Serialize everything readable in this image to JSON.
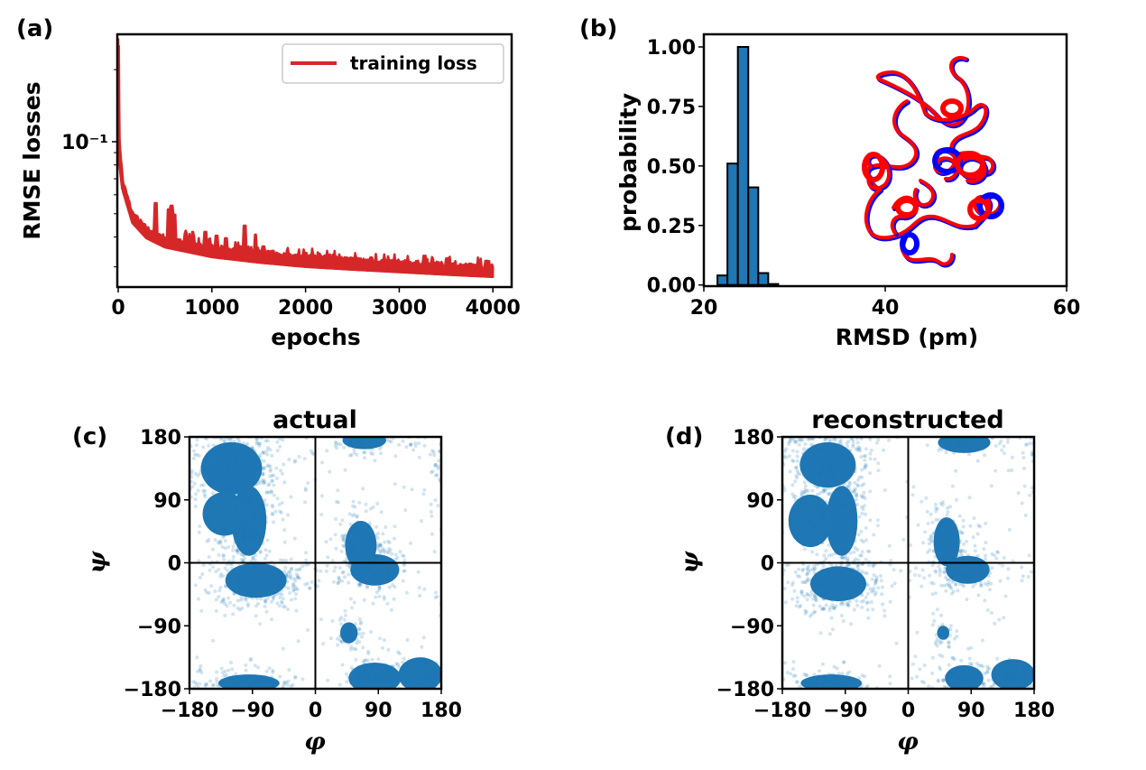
{
  "figure": {
    "panels": [
      "(a)",
      "(b)",
      "(c)",
      "(d)"
    ]
  },
  "chart_data": [
    {
      "id": "a",
      "type": "line",
      "panel_label": "(a)",
      "title": "",
      "xlabel": "epochs",
      "ylabel": "RMSE losses",
      "yscale": "log",
      "xlim": [
        0,
        4200
      ],
      "ylim": [
        0.0247,
        0.281
      ],
      "xticks": [
        0,
        1000,
        2000,
        3000,
        4000
      ],
      "xtick_labels": [
        "0",
        "1000",
        "2000",
        "3000",
        "4000"
      ],
      "yticks_major": [
        0.1
      ],
      "ytick_labels": [
        "10⁻¹"
      ],
      "yticks_minor": [
        0.03,
        0.04,
        0.05,
        0.06,
        0.07,
        0.08,
        0.09,
        0.2
      ],
      "legend": {
        "entries": [
          "training loss"
        ],
        "placement": "top-right"
      },
      "series": [
        {
          "name": "training loss",
          "color": "#d62728",
          "baseline": {
            "x": [
              0,
              8,
              50,
              150,
              300,
              500,
              1000,
              1500,
              2000,
              2500,
              3000,
              3500,
              4000
            ],
            "y": [
              0.253,
              0.1,
              0.0631,
              0.0466,
              0.0402,
              0.0368,
              0.0335,
              0.0318,
              0.0305,
              0.0297,
              0.029,
              0.0283,
              0.0277
            ]
          },
          "spikes": [
            {
              "x": 400,
              "y": 0.0554
            },
            {
              "x": 540,
              "y": 0.0521
            },
            {
              "x": 570,
              "y": 0.054
            },
            {
              "x": 600,
              "y": 0.0495
            },
            {
              "x": 720,
              "y": 0.0425
            },
            {
              "x": 800,
              "y": 0.042
            },
            {
              "x": 930,
              "y": 0.042
            },
            {
              "x": 1050,
              "y": 0.0405
            },
            {
              "x": 1150,
              "y": 0.0395
            },
            {
              "x": 1350,
              "y": 0.0446
            },
            {
              "x": 1470,
              "y": 0.0409
            },
            {
              "x": 1550,
              "y": 0.0365
            },
            {
              "x": 1650,
              "y": 0.035
            },
            {
              "x": 2000,
              "y": 0.0343
            },
            {
              "x": 2150,
              "y": 0.0335
            },
            {
              "x": 2200,
              "y": 0.0325
            },
            {
              "x": 2380,
              "y": 0.0322
            },
            {
              "x": 2580,
              "y": 0.0325
            },
            {
              "x": 2700,
              "y": 0.0328
            },
            {
              "x": 2800,
              "y": 0.0312
            },
            {
              "x": 3030,
              "y": 0.0315
            },
            {
              "x": 3220,
              "y": 0.0308
            },
            {
              "x": 3520,
              "y": 0.0308
            },
            {
              "x": 3580,
              "y": 0.03
            },
            {
              "x": 3700,
              "y": 0.0298
            },
            {
              "x": 3930,
              "y": 0.0305
            }
          ]
        }
      ]
    },
    {
      "id": "b",
      "type": "bar",
      "panel_label": "(b)",
      "title": "",
      "xlabel": "RMSD (pm)",
      "ylabel": "probability",
      "xlim": [
        20,
        60
      ],
      "ylim": [
        -0.005,
        1.053
      ],
      "xticks": [
        20,
        40,
        60
      ],
      "xtick_labels": [
        "20",
        "40",
        "60"
      ],
      "yticks": [
        0,
        0.25,
        0.5,
        0.75,
        1.0
      ],
      "ytick_labels": [
        "0.00",
        "0.25",
        "0.50",
        "0.75",
        "1.00"
      ],
      "bar_color": "#1f77b4",
      "bin_edges": [
        21.5,
        22.6,
        23.75,
        24.9,
        26.0,
        27.1,
        28.2
      ],
      "values": [
        0.04,
        0.51,
        1.0,
        0.41,
        0.05,
        0.004
      ],
      "inset": {
        "description": "overlaid protein ribbon structures",
        "colors": [
          "#ff0000",
          "#0000ff"
        ]
      }
    },
    {
      "id": "c",
      "type": "scatter",
      "panel_label": "(c)",
      "title": "actual",
      "xlabel": "φ",
      "ylabel": "ψ",
      "xlim": [
        -180,
        180
      ],
      "ylim": [
        -180,
        180
      ],
      "xticks": [
        -180,
        -90,
        0,
        90,
        180
      ],
      "xtick_labels": [
        "−180",
        "−90",
        "0",
        "90",
        "180"
      ],
      "yticks": [
        -180,
        -90,
        0,
        90,
        180
      ],
      "ytick_labels": [
        "−180",
        "−90",
        "0",
        "90",
        "180"
      ],
      "color": "#1f77b4",
      "alpha": 0.2,
      "reference_lines": {
        "x": 0,
        "y": 0
      },
      "clusters": [
        {
          "cx": -120,
          "cy": 135,
          "sx": 35,
          "sy": 30,
          "n": 2200
        },
        {
          "cx": -95,
          "cy": 60,
          "sx": 20,
          "sy": 40,
          "n": 900
        },
        {
          "cx": -85,
          "cy": -25,
          "sx": 35,
          "sy": 20,
          "n": 2000
        },
        {
          "cx": -130,
          "cy": 70,
          "sx": 25,
          "sy": 25,
          "n": 180
        },
        {
          "cx": 65,
          "cy": 25,
          "sx": 18,
          "sy": 28,
          "n": 900
        },
        {
          "cx": 85,
          "cy": -10,
          "sx": 28,
          "sy": 18,
          "n": 900
        },
        {
          "cx": 48,
          "cy": -100,
          "sx": 10,
          "sy": 12,
          "n": 250
        },
        {
          "cx": 85,
          "cy": -165,
          "sx": 30,
          "sy": 18,
          "n": 900
        },
        {
          "cx": -95,
          "cy": -172,
          "sx": 35,
          "sy": 10,
          "n": 500
        },
        {
          "cx": 70,
          "cy": 175,
          "sx": 25,
          "sy": 10,
          "n": 200
        },
        {
          "cx": 150,
          "cy": -160,
          "sx": 25,
          "sy": 20,
          "n": 250
        },
        {
          "cx": 0,
          "cy": 0,
          "sx": 180,
          "sy": 180,
          "n": 400
        }
      ]
    },
    {
      "id": "d",
      "type": "scatter",
      "panel_label": "(d)",
      "title": "reconstructed",
      "xlabel": "φ",
      "ylabel": "ψ",
      "xlim": [
        -180,
        180
      ],
      "ylim": [
        -180,
        180
      ],
      "xticks": [
        -180,
        -90,
        0,
        90,
        180
      ],
      "xtick_labels": [
        "−180",
        "−90",
        "0",
        "90",
        "180"
      ],
      "yticks": [
        -180,
        -90,
        0,
        90,
        180
      ],
      "ytick_labels": [
        "−180",
        "−90",
        "0",
        "90",
        "180"
      ],
      "color": "#1f77b4",
      "alpha": 0.2,
      "reference_lines": {
        "x": 0,
        "y": 0
      },
      "clusters": [
        {
          "cx": -115,
          "cy": 140,
          "sx": 32,
          "sy": 26,
          "n": 2200
        },
        {
          "cx": -95,
          "cy": 60,
          "sx": 18,
          "sy": 40,
          "n": 900
        },
        {
          "cx": -100,
          "cy": -30,
          "sx": 32,
          "sy": 20,
          "n": 2000
        },
        {
          "cx": -140,
          "cy": 60,
          "sx": 25,
          "sy": 30,
          "n": 250
        },
        {
          "cx": 55,
          "cy": 30,
          "sx": 15,
          "sy": 28,
          "n": 800
        },
        {
          "cx": 85,
          "cy": -10,
          "sx": 25,
          "sy": 16,
          "n": 900
        },
        {
          "cx": 50,
          "cy": -100,
          "sx": 7,
          "sy": 8,
          "n": 200
        },
        {
          "cx": 80,
          "cy": -165,
          "sx": 22,
          "sy": 15,
          "n": 700
        },
        {
          "cx": -110,
          "cy": -172,
          "sx": 35,
          "sy": 10,
          "n": 450
        },
        {
          "cx": 80,
          "cy": 172,
          "sx": 30,
          "sy": 12,
          "n": 180
        },
        {
          "cx": 150,
          "cy": -160,
          "sx": 25,
          "sy": 18,
          "n": 200
        },
        {
          "cx": 0,
          "cy": 0,
          "sx": 180,
          "sy": 180,
          "n": 500
        }
      ]
    }
  ]
}
